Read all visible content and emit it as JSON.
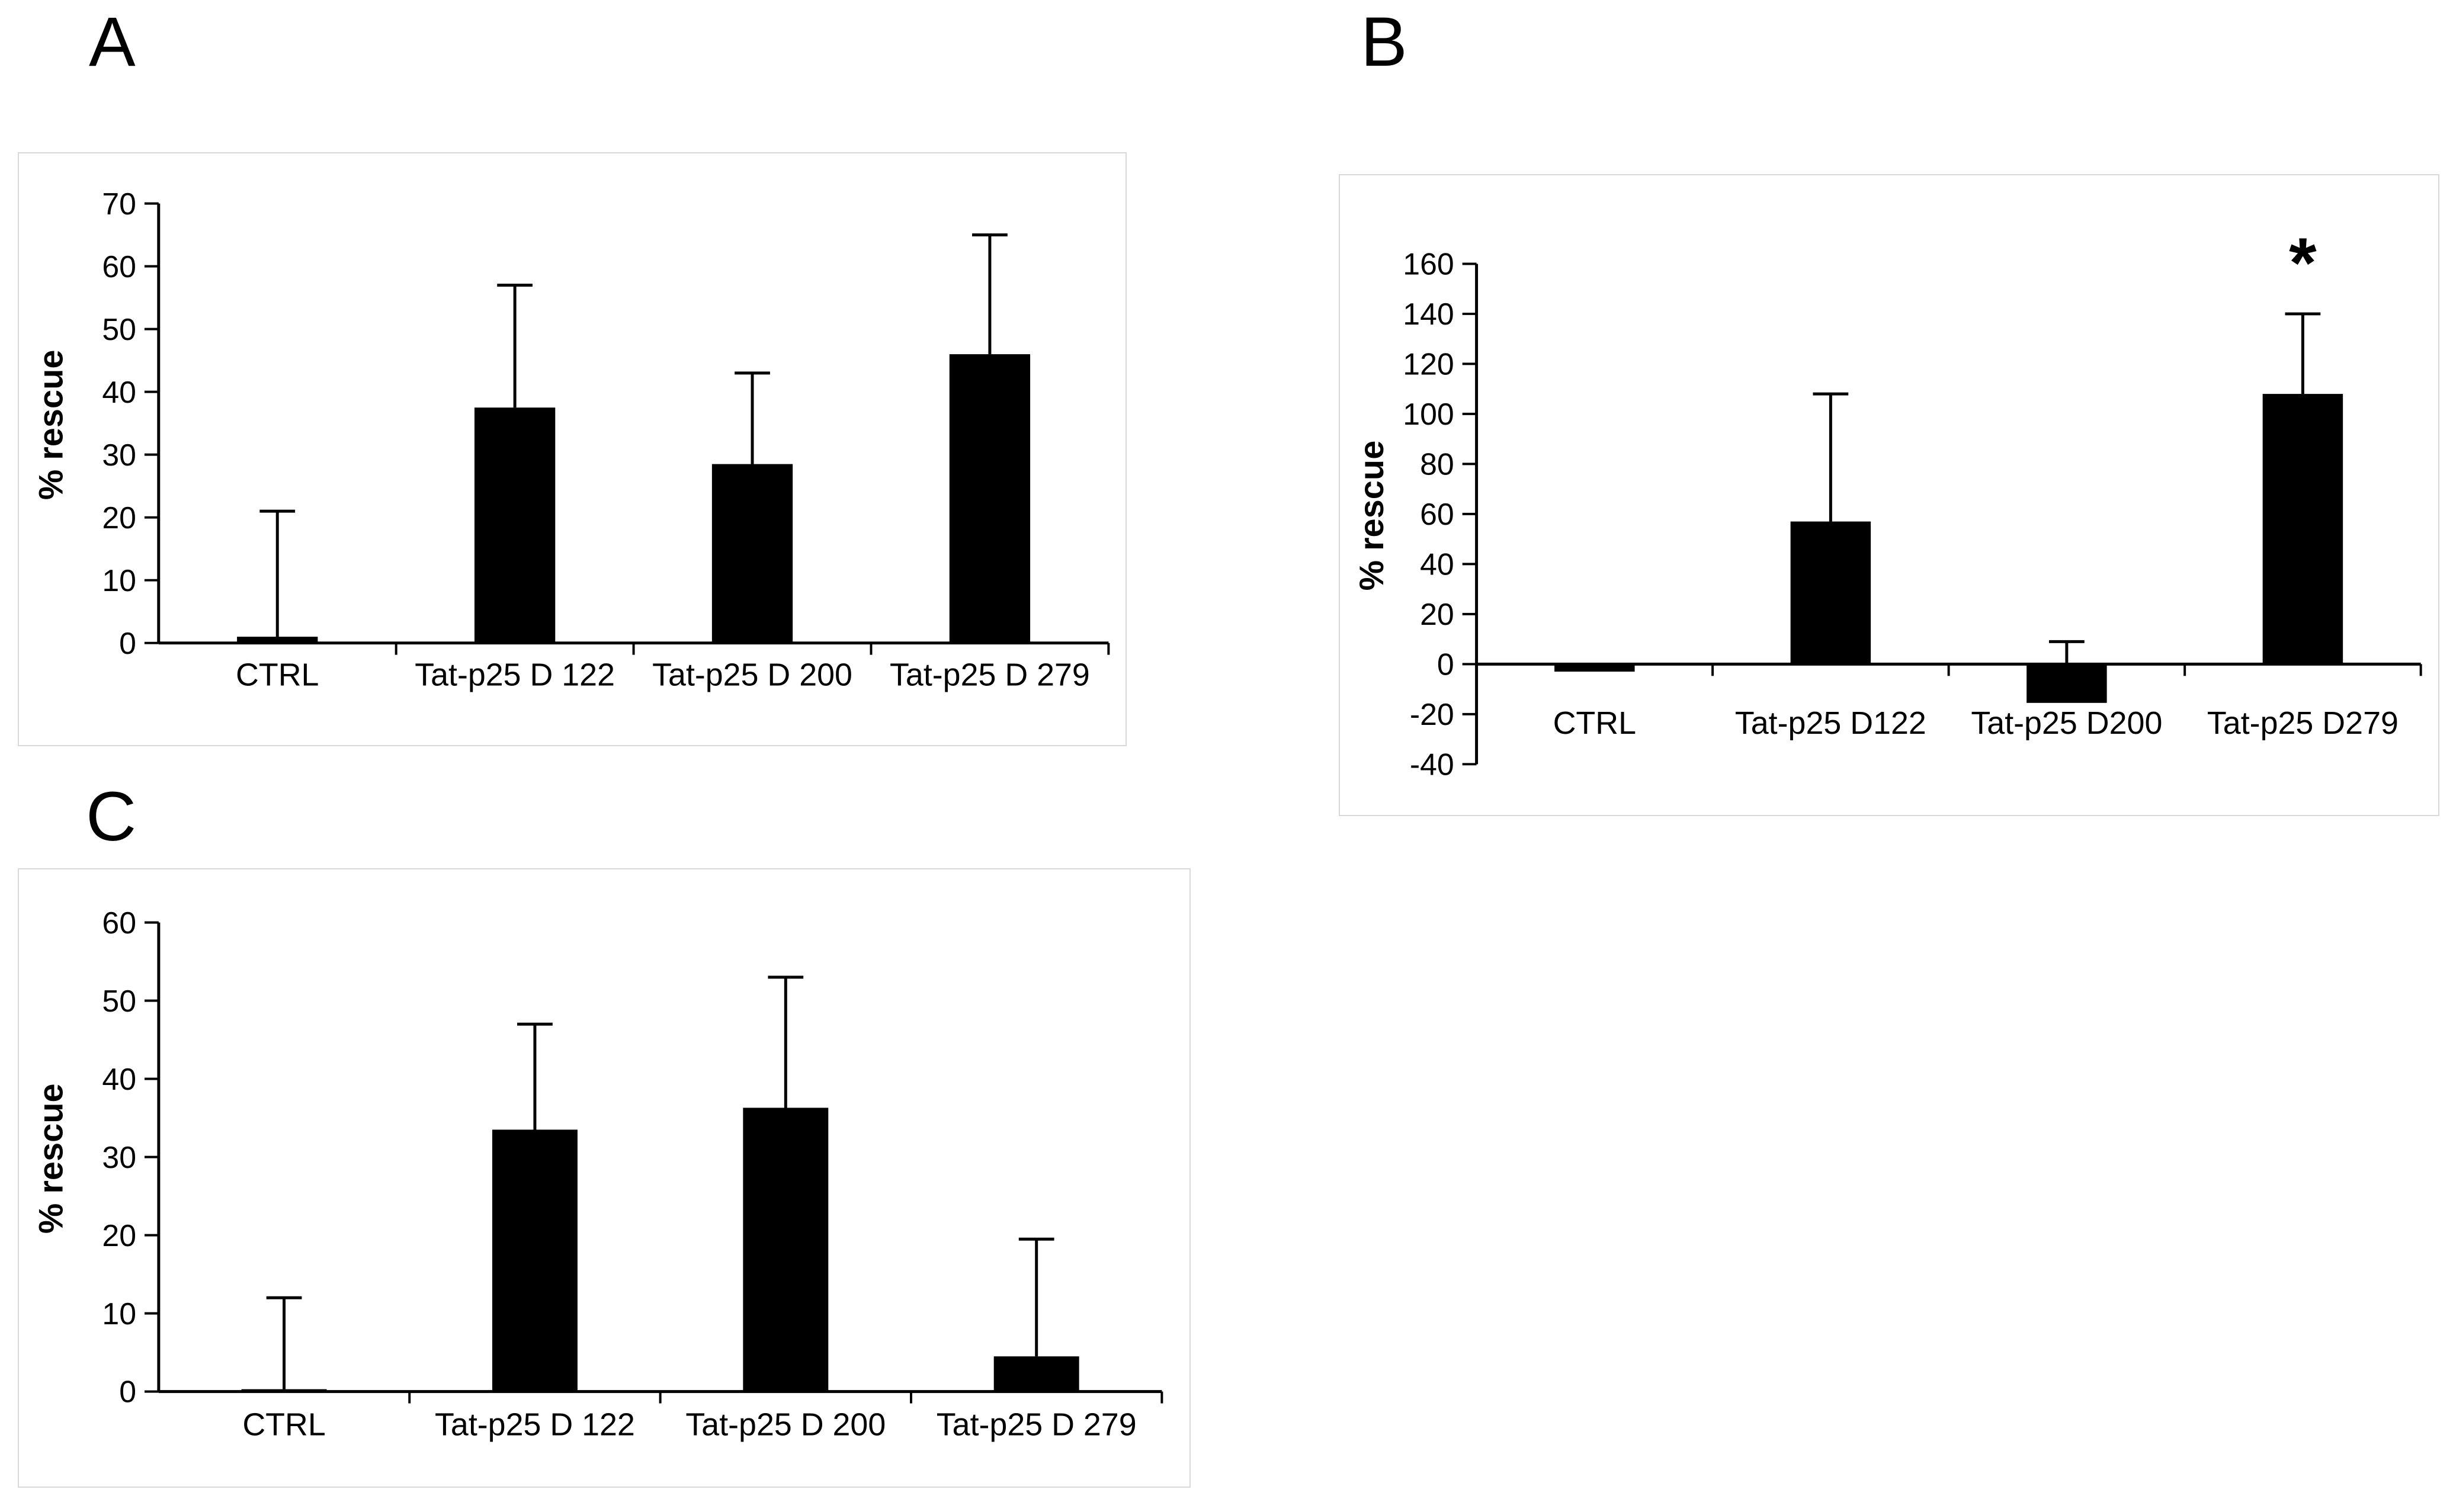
{
  "figure": {
    "background_color": "#ffffff",
    "bar_color": "#000000",
    "axis_color": "#000000",
    "panel_border_color": "#d9d9d9",
    "panels": [
      {
        "label": "A",
        "chart_data": {
          "type": "bar",
          "title": "",
          "xlabel": "",
          "ylabel": "% rescue",
          "categories": [
            "CTRL",
            "Tat-p25 D 122",
            "Tat-p25 D 200",
            "Tat-p25 D 279"
          ],
          "values": [
            1,
            37.5,
            28.5,
            46
          ],
          "error_top": [
            21,
            57,
            43,
            65
          ],
          "ylim": [
            0,
            70
          ],
          "ytick_step": 10,
          "grid": false,
          "legend": null,
          "significance": null
        }
      },
      {
        "label": "B",
        "chart_data": {
          "type": "bar",
          "title": "",
          "xlabel": "",
          "ylabel": "% rescue",
          "categories": [
            "CTRL",
            "Tat-p25 D122",
            "Tat-p25 D200",
            "Tat-p25 D279"
          ],
          "values": [
            -3,
            57,
            -15.5,
            108
          ],
          "error_top": [
            null,
            108,
            9,
            140
          ],
          "ylim": [
            -40,
            160
          ],
          "ytick_step": 20,
          "grid": false,
          "legend": null,
          "significance": {
            "category_index": 3,
            "symbol": "*"
          }
        }
      },
      {
        "label": "C",
        "chart_data": {
          "type": "bar",
          "title": "",
          "xlabel": "",
          "ylabel": "% rescue",
          "categories": [
            "CTRL",
            "Tat-p25 D 122",
            "Tat-p25 D 200",
            "Tat-p25 D 279"
          ],
          "values": [
            0.3,
            33.5,
            36.3,
            4.5
          ],
          "error_top": [
            12,
            47,
            53,
            19.5
          ],
          "ylim": [
            0,
            60
          ],
          "ytick_step": 10,
          "grid": false,
          "legend": null,
          "significance": null
        }
      }
    ]
  }
}
